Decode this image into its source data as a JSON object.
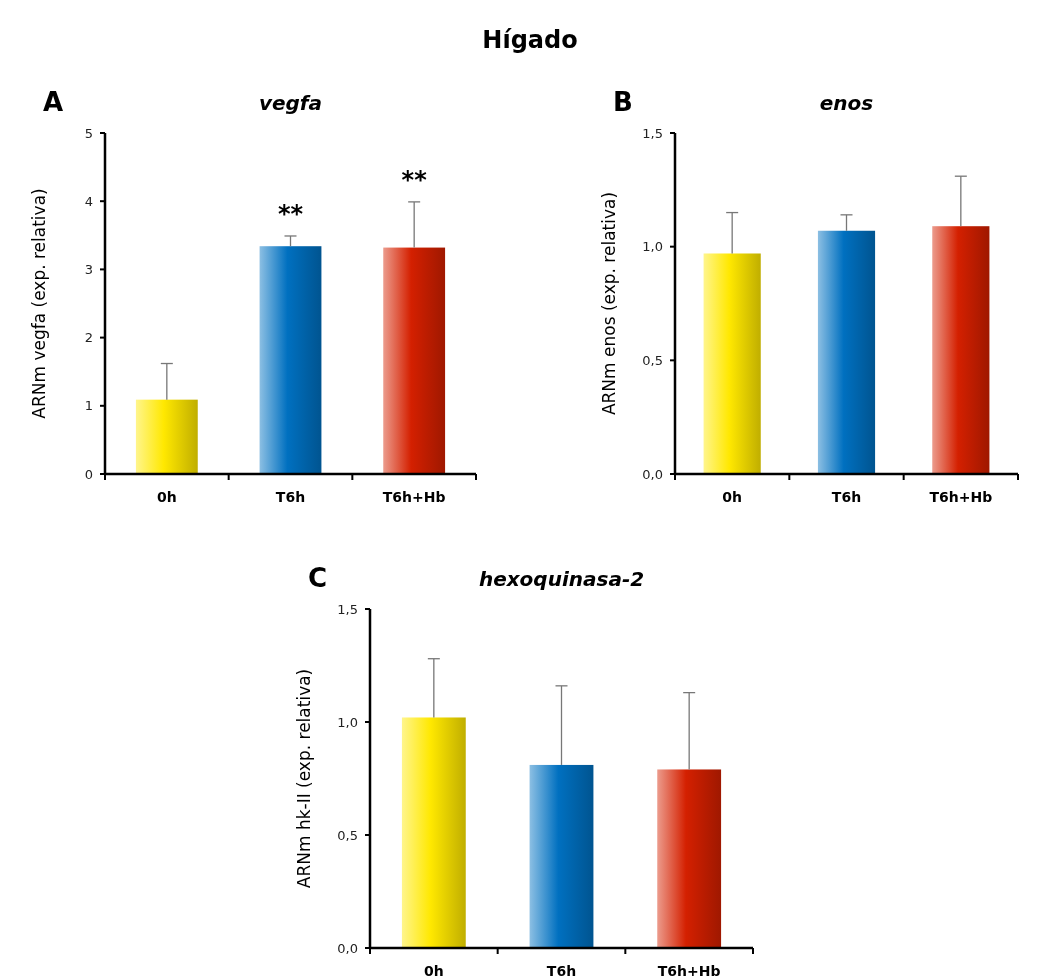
{
  "chart_data": [
    {
      "type": "bar",
      "title": "vegfa",
      "ylabel": "ARNm vegfa (exp. relativa)",
      "categories": [
        "0h",
        "T6h",
        "T6h+Hb"
      ],
      "values": [
        1.09,
        3.34,
        3.32
      ],
      "colors": [
        "#ffe800",
        "#0070c0",
        "#d42000"
      ],
      "errors": [
        [
          1.09,
          1.62
        ],
        [
          3.34,
          3.49
        ],
        [
          3.32,
          3.99
        ]
      ],
      "ylim": [
        0,
        5
      ],
      "yticks": [
        0,
        1,
        2,
        3,
        4,
        5
      ],
      "grid": false,
      "annotations": [
        "Hígado",
        "A",
        {
          "text": "**",
          "x": "T6h",
          "y": 3.49
        },
        {
          "text": "**",
          "x": "T6h+Hb",
          "y": 3.99
        }
      ]
    },
    {
      "type": "bar",
      "title": "enos",
      "ylabel": "ARNm enos (exp. relativa)",
      "categories": [
        "0h",
        "T6h",
        "T6h+Hb"
      ],
      "values": [
        0.97,
        1.07,
        1.09
      ],
      "colors": [
        "#ffe800",
        "#0070c0",
        "#d42000"
      ],
      "errors": [
        [
          0.97,
          1.15
        ],
        [
          1.07,
          1.14
        ],
        [
          1.09,
          1.31
        ]
      ],
      "ylim": [
        0,
        1.5
      ],
      "yticks": [
        {
          "value": 0,
          "label": "0,0"
        },
        {
          "value": 0.5,
          "label": "0,5"
        },
        {
          "value": 1,
          "label": "1,0"
        },
        {
          "value": 1.5,
          "label": "1,5"
        }
      ],
      "grid": false,
      "annotations": [
        "B"
      ]
    },
    {
      "type": "bar",
      "title": "hexoquinasa-2",
      "ylabel": "ARNm hk-II (exp. relativa)",
      "categories": [
        "0h",
        "T6h",
        "T6h+Hb"
      ],
      "values": [
        1.02,
        0.81,
        0.79
      ],
      "colors": [
        "#ffe800",
        "#0070c0",
        "#d42000"
      ],
      "errors": [
        [
          1.02,
          1.28
        ],
        [
          0.81,
          1.16
        ],
        [
          0.79,
          1.13
        ]
      ],
      "ylim": [
        0,
        1.5
      ],
      "yticks": [
        {
          "value": 0,
          "label": "0,0"
        },
        {
          "value": 0.5,
          "label": "0,5"
        },
        {
          "value": 1,
          "label": "1,0"
        },
        {
          "value": 1.5,
          "label": "1,5"
        }
      ],
      "grid": false,
      "annotations": [
        "C"
      ]
    }
  ]
}
